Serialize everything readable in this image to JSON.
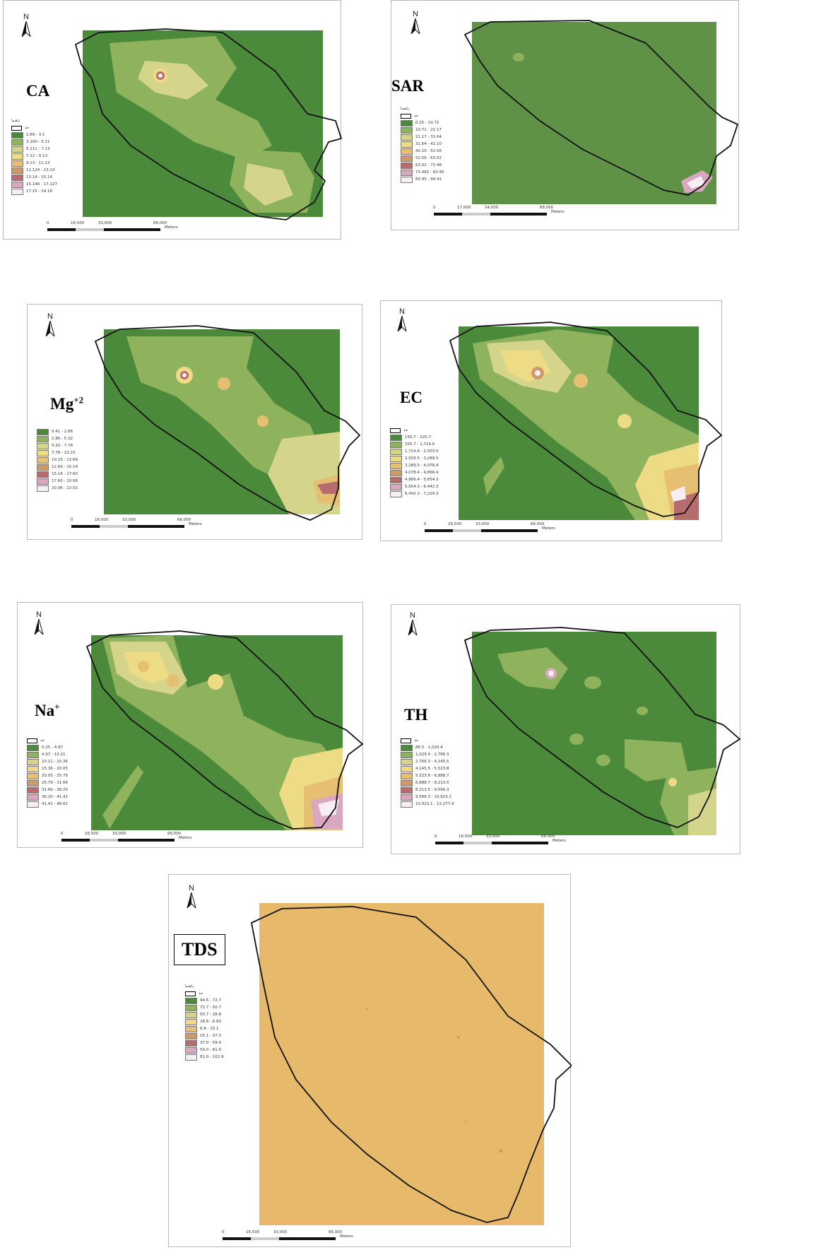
{
  "north_label": "N",
  "boundary_legend_text": "حد",
  "scale_units": "Meters",
  "colors": {
    "boundary": "#111111",
    "class_palette": [
      "#4a8a3a",
      "#8fb35c",
      "#d4d58a",
      "#eddc85",
      "#e6bf72",
      "#cf9a6a",
      "#b66c6c",
      "#d9a7bf",
      "#f6eef3"
    ],
    "background_green": "#5f9246",
    "tds_fill": "#e7b96a"
  },
  "maps": [
    {
      "label": "CA",
      "legend_title": "راهنما",
      "classes": [
        "1.69 - 3.1",
        "3.100 - 5.11",
        "5.111 - 7.13",
        "7.12 - 9.13",
        "9.13 - 11.13",
        "11.124 - 13.14",
        "13.14 - 15.14",
        "15.146 - 17.127",
        "17.15 - 19.16"
      ],
      "scale_ticks": [
        "0",
        "16,500",
        "33,000",
        "66,000"
      ]
    },
    {
      "label": "SAR",
      "legend_title": "راهنما",
      "classes": [
        "0.25 - 10.71",
        "10.71 - 21.17",
        "21.17 - 31.64",
        "31.64 - 42.10",
        "42.10 - 52.56",
        "52.56 - 63.02",
        "63.02 - 73.48",
        "73.482 - 83.95",
        "83.95 - 94.41"
      ],
      "scale_ticks": [
        "0",
        "17,000",
        "34,000",
        "68,000"
      ]
    },
    {
      "label": "Mg",
      "label_sup": "+2",
      "legend_title": "",
      "classes": [
        "0.41 - 2.86",
        "2.86 - 5.32",
        "5.32 - 7.78",
        "7.78 - 10.23",
        "10.23 - 12.69",
        "12.69 - 15.14",
        "15.14 - 17.60",
        "17.60 - 20.06",
        "20.06 - 22.51"
      ],
      "scale_ticks": [
        "0",
        "16,500",
        "33,000",
        "66,000"
      ]
    },
    {
      "label": "EC",
      "legend_title": "",
      "classes": [
        "150.7 - 325.7",
        "325.7 - 1,714.6",
        "1,714.6 - 2,503.5",
        "2,503.5 - 3,289.5",
        "3,289.5 - 4,078.4",
        "4,078.4 - 4,866.4",
        "4,866.4 - 5,654.3",
        "5,654.3 - 6,442.3",
        "6,442.3 - 7,229.3"
      ],
      "scale_ticks": [
        "0",
        "16,500",
        "33,000",
        "66,000"
      ]
    },
    {
      "label": "Na",
      "label_sup": "+",
      "legend_title": "",
      "classes": [
        "0.25 - 4.97",
        "4.97 - 10.11",
        "10.11 - 15.36",
        "15.36 - 20.05",
        "20.05 - 25.79",
        "25.79 - 31.66",
        "31.66 - 36.20",
        "36.20 - 41.41",
        "41.41 - 46.62"
      ],
      "scale_ticks": [
        "0",
        "16,500",
        "33,000",
        "66,000"
      ]
    },
    {
      "label": "TH",
      "legend_title": "",
      "classes": [
        "86.5 - 1,029.4",
        "1,029.4 - 2,766.3",
        "2,766.3 - 4,145.5",
        "4,145.5 - 5,523.8",
        "5,523.8 - 6,888.7",
        "6,888.7 - 8,213.5",
        "8,213.5 - 9,566.3",
        "9,566.3 - 10,923.1",
        "10,923.1 - 12,277.9"
      ],
      "scale_ticks": [
        "0",
        "16,500",
        "33,000",
        "66,000"
      ]
    },
    {
      "label": "TDS",
      "legend_title": "راهنما",
      "classes": [
        "94.6 - 72.7",
        "72.7 - 50.7",
        "50.7 - 28.8",
        "28.8 - 6.83",
        "6.8 - 15.1",
        "15.1 - 37.0",
        "37.0 - 59.0",
        "59.0 - 81.0",
        "81.0 - 102.9"
      ],
      "scale_ticks": [
        "0",
        "16,500",
        "33,000",
        "66,000"
      ]
    }
  ]
}
